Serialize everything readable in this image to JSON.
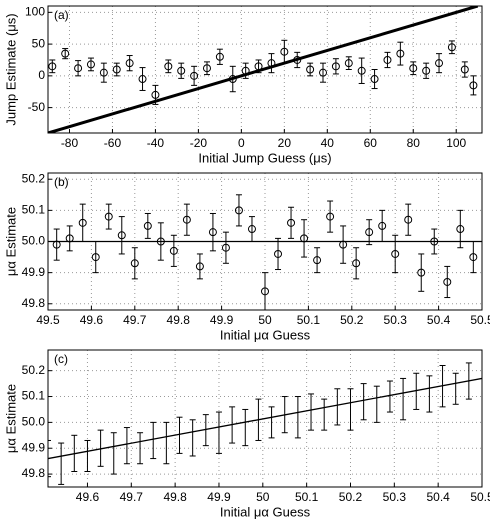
{
  "chart_data": [
    {
      "type": "errorbar",
      "label": "(a)",
      "xlabel": "Initial Jump Guess (μs)",
      "ylabel": "Jump Estimate (μs)",
      "xlim": [
        -90,
        112
      ],
      "ylim": [
        -90,
        110
      ],
      "xticks": [
        -80,
        -60,
        -40,
        -20,
        0,
        20,
        40,
        60,
        80,
        100
      ],
      "yticks": [
        -50,
        0,
        50,
        100
      ],
      "grid": true,
      "marker": "circle",
      "series": [
        {
          "color": "#000000",
          "x": [
            -88,
            -82,
            -76,
            -70,
            -64,
            -58,
            -52,
            -46,
            -40,
            -34,
            -28,
            -22,
            -16,
            -10,
            -4,
            2,
            8,
            14,
            20,
            26,
            32,
            38,
            44,
            50,
            56,
            62,
            68,
            74,
            80,
            86,
            92,
            98,
            104,
            108
          ],
          "values": [
            15,
            35,
            12,
            18,
            5,
            10,
            20,
            -5,
            -30,
            15,
            8,
            0,
            12,
            30,
            -5,
            8,
            15,
            20,
            38,
            25,
            10,
            5,
            15,
            20,
            8,
            -5,
            25,
            35,
            12,
            8,
            20,
            45,
            10,
            -15
          ],
          "errors": [
            10,
            8,
            12,
            10,
            15,
            10,
            12,
            18,
            15,
            10,
            12,
            15,
            10,
            12,
            20,
            12,
            10,
            15,
            18,
            12,
            10,
            15,
            12,
            10,
            20,
            15,
            12,
            18,
            10,
            12,
            15,
            10,
            12,
            15
          ]
        }
      ],
      "line": {
        "color": "#000000",
        "x": [
          -90,
          110
        ],
        "values": [
          -90,
          110
        ]
      }
    },
    {
      "type": "errorbar",
      "label": "(b)",
      "xlabel": "Initial μα Guess",
      "ylabel": "μα Estimate",
      "xlim": [
        49.5,
        50.5
      ],
      "ylim": [
        49.78,
        50.22
      ],
      "xticks": [
        49.5,
        49.6,
        49.7,
        49.8,
        49.9,
        50,
        50.1,
        50.2,
        50.3,
        50.4,
        50.5
      ],
      "yticks": [
        49.8,
        49.9,
        {
          "value": 50,
          "label": "50.0"
        },
        50.1,
        50.2
      ],
      "grid": true,
      "marker": "circle",
      "series": [
        {
          "color": "#000000",
          "x": [
            49.52,
            49.55,
            49.58,
            49.61,
            49.64,
            49.67,
            49.7,
            49.73,
            49.76,
            49.79,
            49.82,
            49.85,
            49.88,
            49.91,
            49.94,
            49.97,
            50,
            50.03,
            50.06,
            50.09,
            50.12,
            50.15,
            50.18,
            50.21,
            50.24,
            50.27,
            50.3,
            50.33,
            50.36,
            50.39,
            50.42,
            50.45,
            50.48
          ],
          "values": [
            49.99,
            50.01,
            50.06,
            49.95,
            50.08,
            50.02,
            49.93,
            50.05,
            50.0,
            49.97,
            50.07,
            49.92,
            50.03,
            49.98,
            50.1,
            50.04,
            49.84,
            49.96,
            50.06,
            50.01,
            49.94,
            50.08,
            49.99,
            49.93,
            50.03,
            50.05,
            49.96,
            50.07,
            49.9,
            50.0,
            49.87,
            50.04,
            49.95
          ],
          "errors": [
            0.05,
            0.04,
            0.06,
            0.05,
            0.04,
            0.06,
            0.05,
            0.04,
            0.06,
            0.05,
            0.05,
            0.04,
            0.06,
            0.05,
            0.05,
            0.04,
            0.06,
            0.05,
            0.05,
            0.06,
            0.04,
            0.05,
            0.06,
            0.05,
            0.04,
            0.05,
            0.06,
            0.05,
            0.06,
            0.04,
            0.05,
            0.06,
            0.05
          ]
        }
      ],
      "line": {
        "color": "#000000",
        "x": [
          49.5,
          50.5
        ],
        "values": [
          50,
          50
        ]
      }
    },
    {
      "type": "errorbar",
      "label": "(c)",
      "xlabel": "Initial μα Guess",
      "ylabel": "μα Estimate",
      "xlim": [
        49.51,
        50.5
      ],
      "ylim": [
        49.75,
        50.28
      ],
      "xticks": [
        49.6,
        49.7,
        49.8,
        49.9,
        50,
        50.1,
        50.2,
        50.3,
        50.4,
        50.5
      ],
      "yticks": [
        49.8,
        49.9,
        {
          "value": 50,
          "label": "50.0"
        },
        50.1,
        50.2
      ],
      "grid": true,
      "marker": "none",
      "series": [
        {
          "color": "#000000",
          "x": [
            49.51,
            49.54,
            49.57,
            49.6,
            49.63,
            49.66,
            49.69,
            49.72,
            49.75,
            49.78,
            49.81,
            49.84,
            49.87,
            49.9,
            49.93,
            49.96,
            49.99,
            50.02,
            50.05,
            50.08,
            50.11,
            50.14,
            50.17,
            50.2,
            50.23,
            50.26,
            50.29,
            50.32,
            50.35,
            50.38,
            50.41,
            50.44,
            50.47
          ],
          "values": [
            49.86,
            49.84,
            49.88,
            49.87,
            49.9,
            49.88,
            49.91,
            49.9,
            49.93,
            49.92,
            49.95,
            49.94,
            49.97,
            49.96,
            49.99,
            49.98,
            50.01,
            50.0,
            50.03,
            50.02,
            50.04,
            50.03,
            50.06,
            50.05,
            50.08,
            50.07,
            50.1,
            50.09,
            50.12,
            50.11,
            50.14,
            50.13,
            50.16
          ],
          "errors": [
            0.07,
            0.08,
            0.07,
            0.06,
            0.07,
            0.08,
            0.07,
            0.06,
            0.07,
            0.08,
            0.07,
            0.07,
            0.06,
            0.08,
            0.07,
            0.07,
            0.08,
            0.06,
            0.07,
            0.08,
            0.07,
            0.06,
            0.07,
            0.08,
            0.07,
            0.07,
            0.06,
            0.08,
            0.07,
            0.07,
            0.08,
            0.06,
            0.07
          ]
        }
      ],
      "line": {
        "color": "#000000",
        "x": [
          49.51,
          50.5
        ],
        "values": [
          49.86,
          50.17
        ]
      }
    }
  ]
}
